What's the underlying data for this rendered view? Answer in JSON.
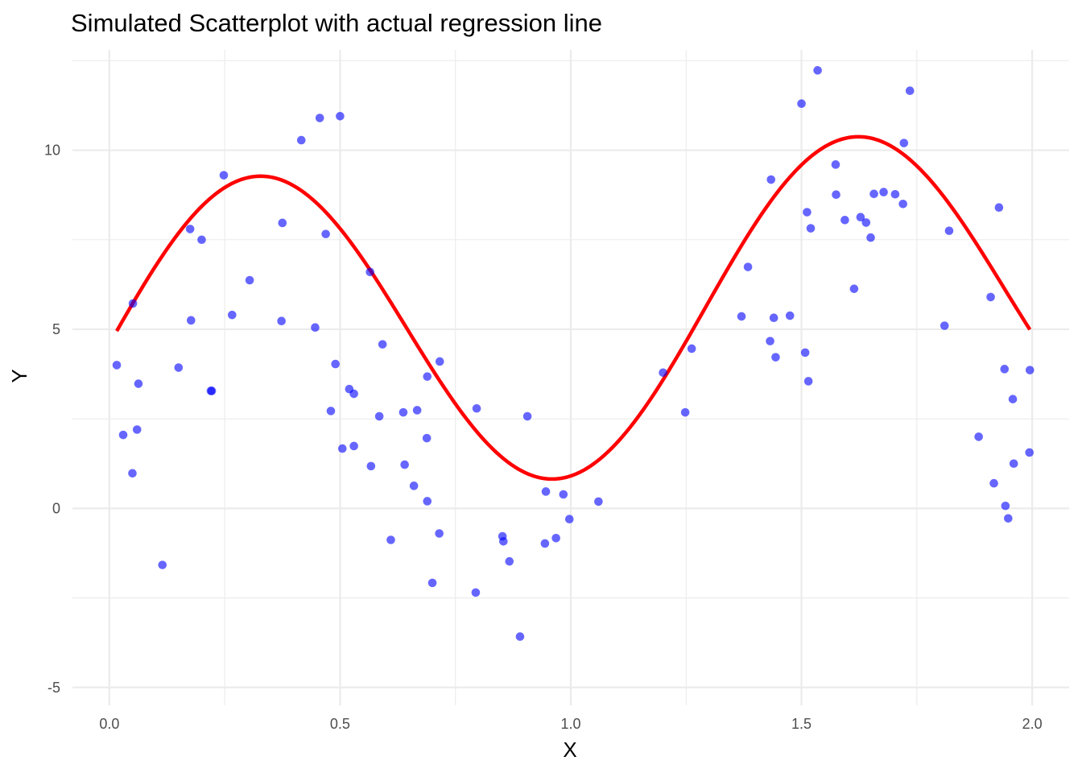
{
  "chart_data": {
    "type": "scatter",
    "title": "Simulated Scatterplot with actual regression line",
    "xlabel": "X",
    "ylabel": "Y",
    "xlim": [
      -0.08,
      2.08
    ],
    "ylim": [
      -5.5,
      12.8
    ],
    "x_ticks": [
      0.0,
      0.5,
      1.0,
      1.5,
      2.0
    ],
    "x_tick_labels": [
      "0.0",
      "0.5",
      "1.0",
      "1.5",
      "2.0"
    ],
    "y_ticks": [
      -5,
      0,
      5,
      10
    ],
    "y_tick_labels": [
      "-5",
      "0",
      "5",
      "10"
    ],
    "grid": true,
    "colors": {
      "points": "#0000ff",
      "line": "#ff0000",
      "grid": "#ebebeb"
    },
    "series": [
      {
        "type": "scatter",
        "x": [
          0.016,
          0.03,
          0.051,
          0.05,
          0.06,
          0.063,
          0.115,
          0.15,
          0.175,
          0.177,
          0.2,
          0.22,
          0.222,
          0.248,
          0.266,
          0.304,
          0.373,
          0.375,
          0.416,
          0.446,
          0.456,
          0.469,
          0.48,
          0.49,
          0.5,
          0.505,
          0.52,
          0.53,
          0.53,
          0.565,
          0.567,
          0.585,
          0.592,
          0.61,
          0.637,
          0.64,
          0.66,
          0.667,
          0.689,
          0.688,
          0.689,
          0.7,
          0.715,
          0.716,
          0.794,
          0.796,
          0.852,
          0.854,
          0.867,
          0.89,
          0.906,
          0.944,
          0.946,
          0.968,
          0.984,
          0.997,
          1.06,
          1.2,
          1.248,
          1.262,
          1.37,
          1.384,
          1.432,
          1.434,
          1.44,
          1.444,
          1.475,
          1.5,
          1.508,
          1.512,
          1.515,
          1.52,
          1.535,
          1.574,
          1.575,
          1.594,
          1.614,
          1.628,
          1.64,
          1.65,
          1.657,
          1.678,
          1.703,
          1.72,
          1.722,
          1.735,
          1.81,
          1.82,
          1.884,
          1.91,
          1.917,
          1.928,
          1.94,
          1.942,
          1.948,
          1.958,
          1.96,
          1.994,
          1.995
        ],
        "y": [
          4.0,
          2.05,
          5.72,
          0.98,
          2.2,
          3.48,
          -1.58,
          3.93,
          7.8,
          5.25,
          7.5,
          3.28,
          3.28,
          9.3,
          5.4,
          6.37,
          5.23,
          7.97,
          10.28,
          5.05,
          10.9,
          7.66,
          2.72,
          4.03,
          10.95,
          1.67,
          3.33,
          3.2,
          1.74,
          6.6,
          1.18,
          2.57,
          4.58,
          -0.88,
          2.68,
          1.22,
          0.63,
          2.74,
          3.68,
          1.96,
          0.2,
          -2.08,
          -0.7,
          4.1,
          -2.35,
          2.79,
          -0.78,
          -0.92,
          -1.48,
          -3.58,
          2.57,
          -0.98,
          0.47,
          -0.83,
          0.39,
          -0.3,
          0.19,
          3.79,
          2.68,
          4.46,
          5.36,
          6.74,
          4.67,
          9.18,
          5.32,
          4.22,
          5.38,
          11.3,
          4.35,
          8.27,
          3.55,
          7.82,
          12.23,
          9.6,
          8.76,
          8.05,
          6.13,
          8.13,
          7.98,
          7.56,
          8.78,
          8.83,
          8.77,
          8.5,
          10.2,
          11.66,
          5.1,
          7.75,
          2.0,
          5.9,
          0.7,
          8.4,
          3.89,
          0.07,
          -0.28,
          3.05,
          1.25,
          1.56,
          3.86
        ]
      },
      {
        "type": "line",
        "formula": "4.5 + 4.5*sin(4.85*x + 0.02) + 0.85*x"
      }
    ]
  }
}
